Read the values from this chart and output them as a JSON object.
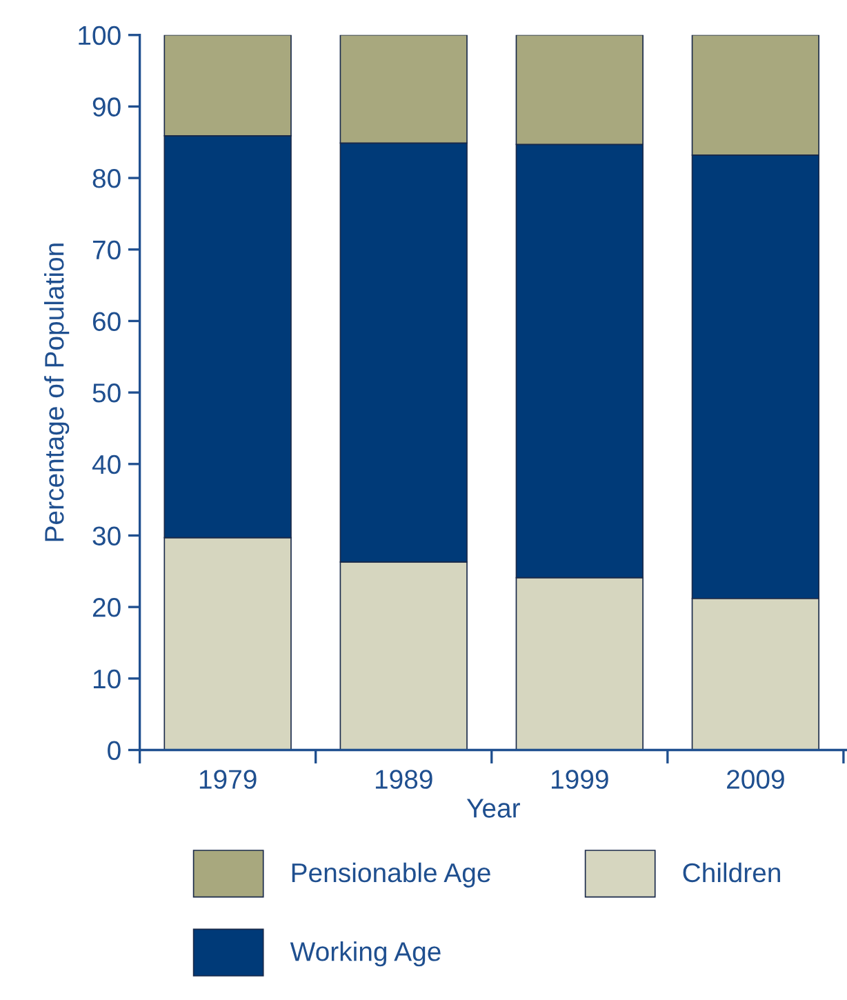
{
  "chart_data": {
    "type": "bar",
    "stacked": true,
    "xlabel": "Year",
    "ylabel": "Percentage of Population",
    "categories": [
      "1979",
      "1989",
      "1999",
      "2009"
    ],
    "series": [
      {
        "name": "Children",
        "color": "#d6d6bf",
        "values": [
          29.7,
          26.3,
          24.1,
          21.2
        ]
      },
      {
        "name": "Working Age",
        "color": "#003a78",
        "values": [
          56.2,
          58.6,
          60.6,
          62.0
        ]
      },
      {
        "name": "Pensionable Age",
        "color": "#a8a87e",
        "values": [
          14.1,
          15.1,
          15.3,
          16.8
        ]
      }
    ],
    "ylim": [
      0,
      100
    ],
    "yticks": [
      0,
      10,
      20,
      30,
      40,
      50,
      60,
      70,
      80,
      90,
      100
    ],
    "grid": false,
    "legend": "bottom"
  }
}
